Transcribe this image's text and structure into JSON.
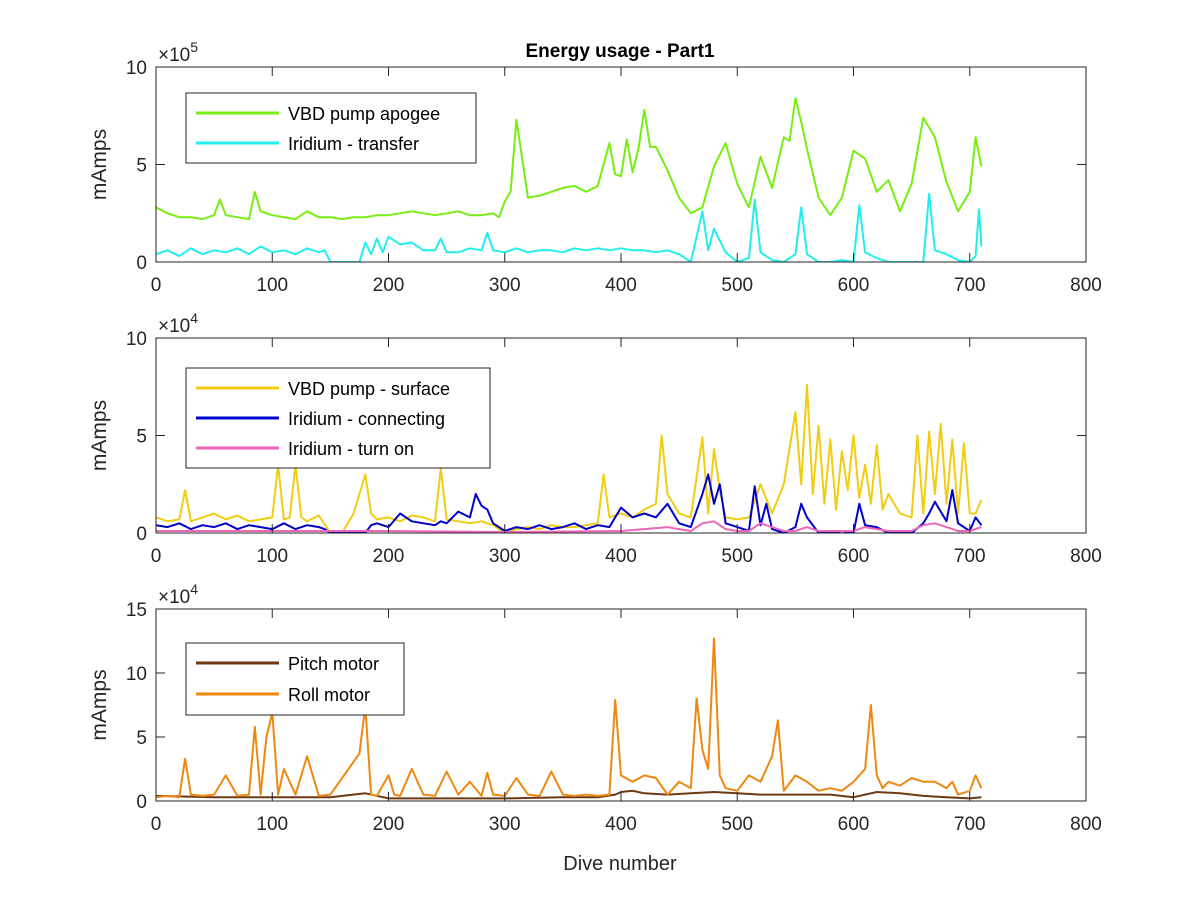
{
  "figure": {
    "title": "Energy usage - Part1",
    "xlabel": "Dive number"
  },
  "chart_data": [
    {
      "type": "line",
      "title": "Energy usage - Part1",
      "xlabel": "",
      "ylabel": "mAmps",
      "exponent_base": "×10",
      "exponent_power": "5",
      "scale": 100000,
      "xlim": [
        0,
        800
      ],
      "ylim": [
        0,
        10
      ],
      "xticks": [
        "0",
        "100",
        "200",
        "300",
        "400",
        "500",
        "600",
        "700",
        "800"
      ],
      "yticks": [
        "0",
        "5",
        "10"
      ],
      "ytick_values": [
        0,
        5,
        10
      ],
      "grid": false,
      "legend_position": "top-left",
      "series": [
        {
          "name": "VBD pump apogee",
          "color": "#77ee11",
          "x": [
            0,
            10,
            20,
            30,
            40,
            50,
            55,
            60,
            70,
            80,
            85,
            90,
            100,
            110,
            120,
            130,
            140,
            150,
            160,
            170,
            180,
            190,
            200,
            210,
            220,
            230,
            240,
            250,
            260,
            270,
            280,
            290,
            295,
            300,
            305,
            310,
            320,
            330,
            340,
            350,
            360,
            370,
            380,
            390,
            395,
            400,
            405,
            410,
            415,
            420,
            425,
            430,
            440,
            450,
            460,
            470,
            480,
            490,
            500,
            510,
            520,
            530,
            540,
            545,
            550,
            555,
            560,
            570,
            580,
            590,
            600,
            610,
            620,
            630,
            640,
            650,
            660,
            670,
            680,
            690,
            700,
            705,
            710
          ],
          "y": [
            2.8,
            2.5,
            2.3,
            2.3,
            2.2,
            2.4,
            3.2,
            2.4,
            2.3,
            2.2,
            3.6,
            2.6,
            2.4,
            2.3,
            2.2,
            2.6,
            2.3,
            2.3,
            2.2,
            2.3,
            2.3,
            2.4,
            2.4,
            2.5,
            2.6,
            2.5,
            2.4,
            2.5,
            2.6,
            2.4,
            2.4,
            2.5,
            2.3,
            3.1,
            3.6,
            7.3,
            3.3,
            3.4,
            3.6,
            3.8,
            3.9,
            3.6,
            3.9,
            6.1,
            4.5,
            4.4,
            6.3,
            4.6,
            5.8,
            7.8,
            5.9,
            5.9,
            4.7,
            3.3,
            2.5,
            2.8,
            4.9,
            6.1,
            4.0,
            2.8,
            5.4,
            3.8,
            6.4,
            6.2,
            8.4,
            7.2,
            5.8,
            3.3,
            2.4,
            3.3,
            5.7,
            5.3,
            3.6,
            4.2,
            2.6,
            4.0,
            7.4,
            6.4,
            4.1,
            2.6,
            3.6,
            6.4,
            4.9
          ]
        },
        {
          "name": "Iridium - transfer",
          "color": "#22eeee",
          "x": [
            0,
            10,
            20,
            30,
            40,
            50,
            60,
            70,
            80,
            90,
            100,
            110,
            120,
            130,
            140,
            145,
            150,
            175,
            180,
            185,
            190,
            195,
            200,
            210,
            220,
            230,
            240,
            245,
            250,
            260,
            270,
            280,
            285,
            290,
            300,
            310,
            320,
            330,
            340,
            350,
            360,
            370,
            380,
            390,
            400,
            410,
            420,
            430,
            440,
            450,
            460,
            470,
            475,
            480,
            490,
            500,
            510,
            515,
            520,
            530,
            540,
            550,
            555,
            560,
            570,
            580,
            590,
            600,
            605,
            610,
            620,
            630,
            640,
            650,
            660,
            665,
            670,
            680,
            690,
            700,
            705,
            708,
            710
          ],
          "y": [
            0.4,
            0.6,
            0.3,
            0.7,
            0.4,
            0.6,
            0.5,
            0.7,
            0.4,
            0.8,
            0.5,
            0.6,
            0.4,
            0.7,
            0.5,
            0.6,
            0.0,
            0.0,
            1.0,
            0.4,
            1.2,
            0.5,
            1.3,
            0.9,
            1.0,
            0.6,
            0.6,
            1.2,
            0.5,
            0.5,
            0.7,
            0.6,
            1.5,
            0.6,
            0.5,
            0.7,
            0.5,
            0.6,
            0.6,
            0.5,
            0.7,
            0.6,
            0.7,
            0.6,
            0.7,
            0.6,
            0.6,
            0.5,
            0.6,
            0.4,
            0.0,
            2.6,
            0.6,
            1.7,
            0.5,
            0.0,
            0.2,
            3.2,
            0.5,
            0.1,
            0.0,
            0.4,
            2.8,
            0.4,
            0.0,
            0.0,
            0.1,
            0.0,
            2.9,
            0.5,
            0.2,
            0.0,
            0.0,
            0.0,
            0.0,
            3.5,
            0.6,
            0.4,
            0.1,
            0.0,
            0.3,
            2.7,
            0.8
          ]
        }
      ]
    },
    {
      "type": "line",
      "title": "",
      "xlabel": "",
      "ylabel": "mAmps",
      "exponent_base": "×10",
      "exponent_power": "4",
      "scale": 10000,
      "xlim": [
        0,
        800
      ],
      "ylim": [
        0,
        10
      ],
      "xticks": [
        "0",
        "100",
        "200",
        "300",
        "400",
        "500",
        "600",
        "700",
        "800"
      ],
      "yticks": [
        "0",
        "5",
        "10"
      ],
      "ytick_values": [
        0,
        5,
        10
      ],
      "grid": false,
      "legend_position": "top-left",
      "series": [
        {
          "name": "VBD pump - surface",
          "color": "#f2cc11",
          "x": [
            0,
            10,
            20,
            25,
            30,
            40,
            50,
            60,
            70,
            80,
            90,
            100,
            105,
            110,
            115,
            120,
            125,
            130,
            140,
            150,
            160,
            170,
            180,
            185,
            190,
            200,
            210,
            220,
            230,
            240,
            245,
            250,
            260,
            270,
            280,
            290,
            300,
            310,
            320,
            330,
            340,
            350,
            360,
            370,
            380,
            385,
            390,
            400,
            410,
            420,
            430,
            435,
            440,
            450,
            460,
            470,
            475,
            480,
            485,
            490,
            500,
            510,
            520,
            530,
            540,
            550,
            555,
            560,
            565,
            570,
            575,
            580,
            585,
            590,
            595,
            600,
            605,
            610,
            615,
            620,
            625,
            630,
            640,
            650,
            655,
            660,
            665,
            670,
            675,
            680,
            685,
            690,
            695,
            700,
            705,
            710
          ],
          "y": [
            0.8,
            0.6,
            0.7,
            2.2,
            0.6,
            0.8,
            1.0,
            0.7,
            0.9,
            0.6,
            0.7,
            0.8,
            3.5,
            0.7,
            0.8,
            3.5,
            0.8,
            0.6,
            0.9,
            0.0,
            0.0,
            1.0,
            3.0,
            1.0,
            0.7,
            0.8,
            0.6,
            0.9,
            0.8,
            0.6,
            3.3,
            0.7,
            0.6,
            0.5,
            0.6,
            0.4,
            0.0,
            0.2,
            0.3,
            0.2,
            0.4,
            0.3,
            0.3,
            0.4,
            0.5,
            3.0,
            0.8,
            1.0,
            0.8,
            1.2,
            1.5,
            5.0,
            2.0,
            1.0,
            0.8,
            4.9,
            1.0,
            4.3,
            2.2,
            0.8,
            0.7,
            0.8,
            2.5,
            1.0,
            2.5,
            6.2,
            2.5,
            7.6,
            2.0,
            5.5,
            1.5,
            4.8,
            1.2,
            4.2,
            2.2,
            5.0,
            1.8,
            3.5,
            1.5,
            4.5,
            1.2,
            2.0,
            1.0,
            0.8,
            5.0,
            1.0,
            5.2,
            2.0,
            5.6,
            1.5,
            4.8,
            1.0,
            4.6,
            1.0,
            1.0,
            1.7
          ]
        },
        {
          "name": "Iridium - connecting",
          "color": "#0000cc",
          "x": [
            0,
            10,
            20,
            30,
            40,
            50,
            60,
            70,
            80,
            90,
            100,
            110,
            120,
            130,
            140,
            145,
            150,
            180,
            185,
            190,
            200,
            210,
            220,
            230,
            240,
            245,
            250,
            260,
            270,
            275,
            280,
            285,
            290,
            300,
            310,
            320,
            330,
            340,
            350,
            360,
            370,
            380,
            390,
            400,
            410,
            420,
            430,
            440,
            450,
            460,
            470,
            475,
            480,
            485,
            490,
            500,
            510,
            515,
            520,
            525,
            530,
            540,
            550,
            555,
            560,
            570,
            580,
            590,
            600,
            605,
            610,
            620,
            630,
            640,
            650,
            660,
            665,
            670,
            680,
            685,
            690,
            700,
            705,
            710
          ],
          "y": [
            0.4,
            0.3,
            0.5,
            0.2,
            0.4,
            0.3,
            0.5,
            0.2,
            0.4,
            0.3,
            0.2,
            0.5,
            0.2,
            0.4,
            0.3,
            0.2,
            0.0,
            0.0,
            0.4,
            0.5,
            0.3,
            1.0,
            0.6,
            0.5,
            0.4,
            0.6,
            0.5,
            1.1,
            0.8,
            2.0,
            1.4,
            1.2,
            0.5,
            0.1,
            0.3,
            0.2,
            0.4,
            0.2,
            0.3,
            0.5,
            0.2,
            0.4,
            0.3,
            1.3,
            0.8,
            1.0,
            0.8,
            1.5,
            0.5,
            0.3,
            2.0,
            3.0,
            1.5,
            2.5,
            0.5,
            0.3,
            0.1,
            2.4,
            0.4,
            1.5,
            0.2,
            0.0,
            0.3,
            1.5,
            0.8,
            0.0,
            0.0,
            0.1,
            0.0,
            1.5,
            0.4,
            0.3,
            0.0,
            0.0,
            0.0,
            0.5,
            1.0,
            1.6,
            0.6,
            2.2,
            0.5,
            0.1,
            0.8,
            0.4
          ]
        },
        {
          "name": "Iridium - turn on",
          "color": "#ee66bb",
          "x": [
            0,
            100,
            200,
            300,
            400,
            440,
            450,
            460,
            470,
            480,
            490,
            500,
            510,
            520,
            530,
            540,
            550,
            560,
            570,
            580,
            590,
            600,
            610,
            620,
            630,
            640,
            650,
            660,
            670,
            680,
            690,
            700,
            710
          ],
          "y": [
            0.1,
            0.1,
            0.1,
            0.05,
            0.1,
            0.3,
            0.2,
            0.1,
            0.5,
            0.6,
            0.2,
            0.1,
            0.1,
            0.5,
            0.3,
            0.1,
            0.1,
            0.3,
            0.1,
            0.1,
            0.1,
            0.1,
            0.3,
            0.2,
            0.1,
            0.1,
            0.1,
            0.4,
            0.5,
            0.3,
            0.1,
            0.1,
            0.3
          ]
        }
      ]
    },
    {
      "type": "line",
      "title": "",
      "xlabel": "Dive number",
      "ylabel": "mAmps",
      "exponent_base": "×10",
      "exponent_power": "4",
      "scale": 10000,
      "xlim": [
        0,
        800
      ],
      "ylim": [
        0,
        15
      ],
      "xticks": [
        "0",
        "100",
        "200",
        "300",
        "400",
        "500",
        "600",
        "700",
        "800"
      ],
      "yticks": [
        "0",
        "5",
        "10",
        "15"
      ],
      "ytick_values": [
        0,
        5,
        10,
        15
      ],
      "grid": false,
      "legend_position": "top-left",
      "series": [
        {
          "name": "Pitch motor",
          "color": "#6b3a14",
          "x": [
            0,
            50,
            100,
            150,
            180,
            200,
            250,
            300,
            350,
            380,
            395,
            400,
            410,
            420,
            440,
            460,
            480,
            500,
            520,
            540,
            560,
            580,
            600,
            620,
            640,
            660,
            680,
            700,
            710
          ],
          "y": [
            0.4,
            0.3,
            0.3,
            0.3,
            0.6,
            0.2,
            0.2,
            0.2,
            0.3,
            0.3,
            0.5,
            0.7,
            0.8,
            0.6,
            0.5,
            0.6,
            0.7,
            0.6,
            0.5,
            0.5,
            0.5,
            0.5,
            0.3,
            0.7,
            0.6,
            0.4,
            0.3,
            0.2,
            0.3
          ]
        },
        {
          "name": "Roll motor",
          "color": "#ee8811",
          "x": [
            0,
            10,
            20,
            25,
            30,
            40,
            50,
            60,
            70,
            80,
            85,
            90,
            95,
            100,
            105,
            110,
            120,
            130,
            140,
            150,
            175,
            180,
            185,
            190,
            200,
            205,
            210,
            220,
            230,
            240,
            250,
            260,
            270,
            280,
            285,
            290,
            300,
            310,
            320,
            330,
            340,
            350,
            360,
            370,
            380,
            390,
            395,
            400,
            410,
            420,
            430,
            440,
            450,
            460,
            465,
            470,
            475,
            480,
            485,
            490,
            500,
            510,
            520,
            530,
            535,
            540,
            550,
            560,
            570,
            580,
            590,
            600,
            610,
            615,
            620,
            625,
            630,
            640,
            650,
            660,
            670,
            680,
            685,
            690,
            700,
            705,
            710
          ],
          "y": [
            0.3,
            0.4,
            0.3,
            3.3,
            0.5,
            0.4,
            0.5,
            2.0,
            0.4,
            0.5,
            5.8,
            0.5,
            5.0,
            6.9,
            0.5,
            2.5,
            0.5,
            3.5,
            0.4,
            0.5,
            3.7,
            7.4,
            0.5,
            0.4,
            2.0,
            0.5,
            0.4,
            2.5,
            0.5,
            0.4,
            2.3,
            0.5,
            1.5,
            0.4,
            2.2,
            0.5,
            0.4,
            1.8,
            0.5,
            0.4,
            2.3,
            0.5,
            0.4,
            0.5,
            0.4,
            0.5,
            7.9,
            2.0,
            1.5,
            2.0,
            1.8,
            0.5,
            1.5,
            1.0,
            8.0,
            4.0,
            2.5,
            12.7,
            2.0,
            1.0,
            0.8,
            2.0,
            1.5,
            3.5,
            6.3,
            0.8,
            2.0,
            1.5,
            0.8,
            1.0,
            0.8,
            1.5,
            2.5,
            7.5,
            2.0,
            1.0,
            1.5,
            1.2,
            1.8,
            1.5,
            1.5,
            1.0,
            1.5,
            0.5,
            0.8,
            2.0,
            1.0
          ]
        }
      ]
    }
  ]
}
